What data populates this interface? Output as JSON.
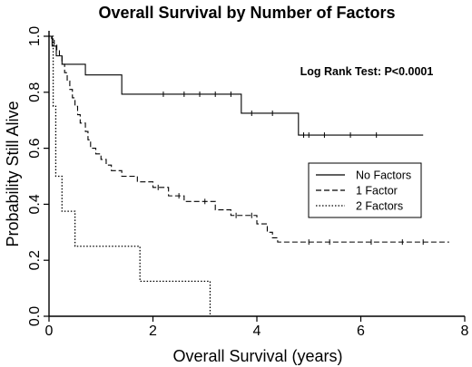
{
  "chart_data": {
    "type": "line",
    "title": "Overall Survival by Number of Factors",
    "xlabel": "Overall Survival (years)",
    "ylabel": "Probability Still Alive",
    "xlim": [
      0,
      8
    ],
    "ylim": [
      0,
      1
    ],
    "xticks": [
      "0",
      "2",
      "4",
      "6",
      "8"
    ],
    "yticks": [
      "0.0",
      "0.2",
      "0.4",
      "0.6",
      "0.8",
      "1.0"
    ],
    "annotation": "Log Rank Test: P<0.0001",
    "grid": false,
    "legend_position": "right",
    "series": [
      {
        "name": "No Factors",
        "style": "solid",
        "steps": [
          [
            0,
            1.0
          ],
          [
            0.06,
            0.965
          ],
          [
            0.14,
            0.93
          ],
          [
            0.25,
            0.9
          ],
          [
            0.7,
            0.862
          ],
          [
            1.4,
            0.793
          ],
          [
            3.7,
            0.725
          ],
          [
            4.8,
            0.647
          ],
          [
            7.2,
            0.647
          ]
        ],
        "censored": [
          [
            2.2,
            0.793
          ],
          [
            2.6,
            0.793
          ],
          [
            2.9,
            0.793
          ],
          [
            3.2,
            0.793
          ],
          [
            3.5,
            0.793
          ],
          [
            3.9,
            0.725
          ],
          [
            4.3,
            0.725
          ],
          [
            4.9,
            0.647
          ],
          [
            5.0,
            0.647
          ],
          [
            5.3,
            0.647
          ],
          [
            5.8,
            0.647
          ],
          [
            6.3,
            0.647
          ]
        ]
      },
      {
        "name": "1 Factor",
        "style": "dashed",
        "steps": [
          [
            0,
            1.0
          ],
          [
            0.05,
            0.985
          ],
          [
            0.1,
            0.97
          ],
          [
            0.15,
            0.95
          ],
          [
            0.2,
            0.93
          ],
          [
            0.25,
            0.9
          ],
          [
            0.3,
            0.87
          ],
          [
            0.35,
            0.84
          ],
          [
            0.4,
            0.81
          ],
          [
            0.45,
            0.78
          ],
          [
            0.5,
            0.75
          ],
          [
            0.55,
            0.72
          ],
          [
            0.6,
            0.69
          ],
          [
            0.7,
            0.66
          ],
          [
            0.75,
            0.63
          ],
          [
            0.8,
            0.6
          ],
          [
            0.9,
            0.58
          ],
          [
            1.0,
            0.56
          ],
          [
            1.1,
            0.54
          ],
          [
            1.2,
            0.52
          ],
          [
            1.4,
            0.5
          ],
          [
            1.7,
            0.48
          ],
          [
            2.0,
            0.46
          ],
          [
            2.3,
            0.43
          ],
          [
            2.6,
            0.41
          ],
          [
            3.2,
            0.38
          ],
          [
            3.5,
            0.36
          ],
          [
            4.0,
            0.33
          ],
          [
            4.2,
            0.3
          ],
          [
            4.3,
            0.28
          ],
          [
            4.4,
            0.265
          ],
          [
            7.7,
            0.265
          ]
        ],
        "censored": [
          [
            2.1,
            0.46
          ],
          [
            2.5,
            0.43
          ],
          [
            3.0,
            0.41
          ],
          [
            3.6,
            0.36
          ],
          [
            3.9,
            0.36
          ],
          [
            5.0,
            0.265
          ],
          [
            5.4,
            0.265
          ],
          [
            6.2,
            0.265
          ],
          [
            6.8,
            0.265
          ],
          [
            7.2,
            0.265
          ]
        ]
      },
      {
        "name": "2 Factors",
        "style": "dotted",
        "steps": [
          [
            0,
            1.0
          ],
          [
            0.08,
            0.75
          ],
          [
            0.13,
            0.5
          ],
          [
            0.25,
            0.375
          ],
          [
            0.5,
            0.25
          ],
          [
            1.75,
            0.125
          ],
          [
            3.1,
            0.125
          ],
          [
            3.1,
            0.0
          ]
        ],
        "censored": []
      }
    ]
  }
}
